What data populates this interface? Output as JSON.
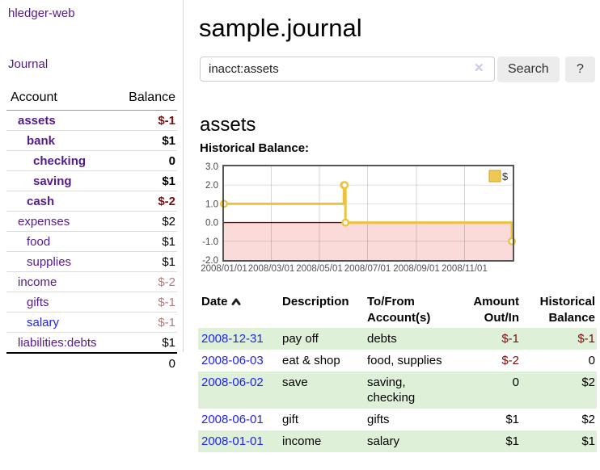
{
  "app": {
    "brand": "hledger-web",
    "nav_journal_label": "Journal"
  },
  "sidebar": {
    "accounts_table": {
      "headers": {
        "account": "Account",
        "balance": "Balance"
      },
      "rows": [
        {
          "name": "assets",
          "depth": 1,
          "bold": true,
          "link_color": "purple",
          "balance": "$-1",
          "balance_style": "neg"
        },
        {
          "name": "bank",
          "depth": 2,
          "bold": true,
          "link_color": "purple",
          "balance": "$1",
          "balance_style": "pos"
        },
        {
          "name": "checking",
          "depth": 3,
          "bold": true,
          "link_color": "purple",
          "balance": "0",
          "balance_style": "pos"
        },
        {
          "name": "saving",
          "depth": 3,
          "bold": true,
          "link_color": "purple",
          "balance": "$1",
          "balance_style": "pos"
        },
        {
          "name": "cash",
          "depth": 2,
          "bold": true,
          "link_color": "purple",
          "balance": "$-2",
          "balance_style": "neg"
        },
        {
          "name": "expenses",
          "depth": 1,
          "bold": false,
          "link_color": "purple",
          "balance": "$2",
          "balance_style": "pos"
        },
        {
          "name": "food",
          "depth": 2,
          "bold": false,
          "link_color": "purple",
          "balance": "$1",
          "balance_style": "pos"
        },
        {
          "name": "supplies",
          "depth": 2,
          "bold": false,
          "link_color": "purple",
          "balance": "$1",
          "balance_style": "pos"
        },
        {
          "name": "income",
          "depth": 1,
          "bold": false,
          "link_color": "purple",
          "balance": "$-2",
          "balance_style": "neg-light"
        },
        {
          "name": "gifts",
          "depth": 2,
          "bold": false,
          "link_color": "purple",
          "balance": "$-1",
          "balance_style": "neg-light"
        },
        {
          "name": "salary",
          "depth": 2,
          "bold": false,
          "link_color": "blue",
          "balance": "$-1",
          "balance_style": "neg-light"
        },
        {
          "name": "liabilities:debts",
          "depth": 1,
          "bold": false,
          "link_color": "purple",
          "balance": "$1",
          "balance_style": "pos"
        }
      ],
      "total": "0"
    }
  },
  "header": {
    "title": "sample.journal"
  },
  "search": {
    "value": "inacct:assets",
    "clear_icon": "✕",
    "search_button_label": "Search",
    "help_button_label": "?"
  },
  "account_page": {
    "heading": "assets",
    "chart_title": "Historical Balance:"
  },
  "chart_data": {
    "type": "line",
    "steps": true,
    "series": [
      {
        "name": "$",
        "color": "#EDC240",
        "x": [
          "2008-01-01",
          "2008-06-01",
          "2008-06-02",
          "2008-06-03",
          "2008-12-31"
        ],
        "y": [
          1,
          2,
          2,
          0,
          -1
        ]
      }
    ],
    "xrange": [
      "2008-01-01",
      "2009-01-01"
    ],
    "ylim": [
      -2,
      3
    ],
    "ytick_labels": [
      "3.0",
      "2.0",
      "1.0",
      "0.0",
      "-1.0",
      "-2.0"
    ],
    "ytick_values": [
      3,
      2,
      1,
      0,
      -1,
      -2
    ],
    "xtick_labels": [
      "2008/01/01",
      "2008/03/01",
      "2008/05/01",
      "2008/07/01",
      "2008/09/01",
      "2008/11/01"
    ],
    "xtick_dates": [
      "2008-01-01",
      "2008-03-01",
      "2008-05-01",
      "2008-07-01",
      "2008-09-01",
      "2008-11-01"
    ],
    "legend_position": "top-right",
    "grid": true,
    "negative_region_fill": "#fbdada",
    "zero_line_color": "#8b0000",
    "border_color": "#545454"
  },
  "register": {
    "headers": {
      "date": "Date",
      "description": "Description",
      "accounts": "To/From Account(s)",
      "amount": "Amount Out/In",
      "balance": "Historical Balance"
    },
    "sort_icon": "chevron-up",
    "rows": [
      {
        "date": "2008-12-31",
        "description": "pay off",
        "accounts": "debts",
        "amount": "$-1",
        "amount_negative": true,
        "balance": "$-1",
        "balance_negative": true,
        "highlight": true
      },
      {
        "date": "2008-06-03",
        "description": "eat & shop",
        "accounts": "food, supplies",
        "amount": "$-2",
        "amount_negative": true,
        "balance": "0",
        "balance_negative": false,
        "highlight": false
      },
      {
        "date": "2008-06-02",
        "description": "save",
        "accounts": "saving, checking",
        "amount": "0",
        "amount_negative": false,
        "balance": "$2",
        "balance_negative": false,
        "highlight": true
      },
      {
        "date": "2008-06-01",
        "description": "gift",
        "accounts": "gifts",
        "amount": "$1",
        "amount_negative": false,
        "balance": "$2",
        "balance_negative": false,
        "highlight": false
      },
      {
        "date": "2008-01-01",
        "description": "income",
        "accounts": "salary",
        "amount": "$1",
        "amount_negative": false,
        "balance": "$1",
        "balance_negative": false,
        "highlight": true
      }
    ]
  },
  "colors": {
    "link_purple": "#551a8b",
    "link_blue": "#2222ee",
    "negative_dark": "#7c0d0d",
    "negative_light": "#b5797b",
    "row_highlight_green": "#dff0d8",
    "series_gold": "#EDC240",
    "chart_negative_fill": "#fbdada",
    "chart_zero_line": "#8b0000"
  }
}
